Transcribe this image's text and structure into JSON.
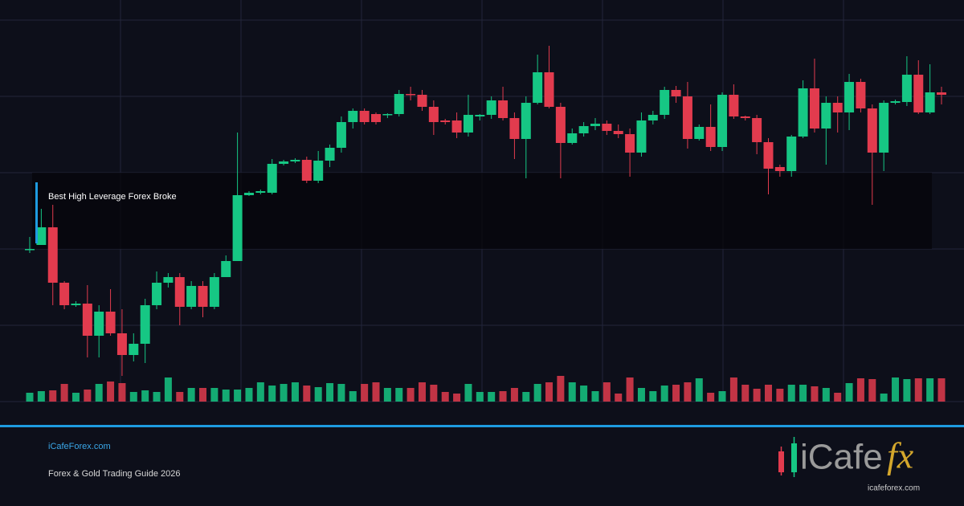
{
  "chart_data": {
    "type": "candlestick",
    "annotation": "Best High Leverage Forex Broke",
    "up_color": "#16c784",
    "down_color": "#e23b4e",
    "open": [
      190,
      195,
      217,
      148,
      120,
      122,
      82,
      112,
      85,
      58,
      72,
      120,
      148,
      155,
      118,
      144,
      118,
      155,
      175,
      257,
      260,
      260,
      296,
      299,
      301,
      275,
      300,
      316,
      348,
      362,
      358,
      357,
      358,
      383,
      382,
      367,
      350,
      350,
      335,
      355,
      357,
      375,
      353,
      327,
      372,
      410,
      367,
      322,
      334,
      343,
      346,
      337,
      333,
      310,
      350,
      357,
      388,
      380,
      327,
      342,
      317,
      382,
      355,
      353,
      323,
      292,
      287,
      330,
      390,
      340,
      372,
      360,
      398,
      365,
      310,
      372,
      373,
      407,
      360,
      385
    ],
    "close": [
      190,
      217,
      148,
      120,
      122,
      82,
      112,
      85,
      58,
      72,
      120,
      148,
      155,
      118,
      144,
      118,
      155,
      175,
      257,
      260,
      262,
      296,
      299,
      301,
      275,
      300,
      316,
      348,
      362,
      348,
      348,
      358,
      383,
      382,
      367,
      348,
      348,
      335,
      357,
      357,
      375,
      353,
      327,
      372,
      410,
      367,
      322,
      334,
      343,
      346,
      337,
      333,
      310,
      350,
      357,
      388,
      380,
      327,
      342,
      317,
      382,
      355,
      353,
      323,
      290,
      287,
      330,
      390,
      340,
      372,
      360,
      398,
      365,
      310,
      372,
      374,
      407,
      360,
      385,
      382
    ],
    "high": [
      205,
      240,
      245,
      150,
      125,
      145,
      120,
      140,
      115,
      85,
      128,
      162,
      160,
      160,
      150,
      150,
      160,
      182,
      335,
      262,
      264,
      302,
      301,
      303,
      305,
      312,
      320,
      355,
      365,
      365,
      360,
      359,
      388,
      392,
      388,
      375,
      352,
      360,
      382,
      358,
      380,
      392,
      360,
      380,
      432,
      443,
      372,
      340,
      348,
      353,
      350,
      345,
      340,
      360,
      362,
      392,
      393,
      398,
      345,
      370,
      385,
      395,
      356,
      357,
      328,
      295,
      332,
      400,
      427,
      380,
      380,
      408,
      402,
      370,
      375,
      376,
      430,
      425,
      420,
      392
    ],
    "low": [
      185,
      195,
      120,
      115,
      118,
      55,
      55,
      82,
      32,
      50,
      48,
      115,
      142,
      95,
      115,
      105,
      115,
      155,
      175,
      256,
      258,
      258,
      294,
      297,
      272,
      272,
      292,
      310,
      340,
      345,
      345,
      353,
      355,
      375,
      362,
      332,
      345,
      328,
      330,
      350,
      352,
      350,
      302,
      278,
      370,
      365,
      278,
      320,
      330,
      338,
      332,
      328,
      280,
      305,
      345,
      352,
      372,
      315,
      325,
      312,
      312,
      352,
      350,
      308,
      258,
      280,
      280,
      328,
      335,
      295,
      335,
      338,
      360,
      245,
      287,
      370,
      368,
      358,
      358,
      370
    ],
    "volumes": [
      11,
      13,
      14,
      22,
      11,
      15,
      22,
      25,
      23,
      12,
      14,
      12,
      30,
      12,
      17,
      17,
      17,
      15,
      15,
      17,
      24,
      20,
      22,
      24,
      20,
      18,
      23,
      22,
      13,
      22,
      24,
      17,
      17,
      17,
      24,
      21,
      12,
      10,
      22,
      12,
      12,
      13,
      17,
      12,
      22,
      24,
      32,
      24,
      20,
      13,
      24,
      10,
      30,
      17,
      13,
      20,
      21,
      24,
      29,
      11,
      13,
      30,
      21,
      16,
      21,
      16,
      21,
      21,
      19,
      17,
      11,
      23,
      29,
      28,
      10,
      30,
      28,
      29,
      29,
      29
    ]
  },
  "footer": {
    "site": "iCafeForex.com",
    "tagline": "Forex & Gold Trading Guide 2026"
  },
  "logo": {
    "prefix": "iCafe",
    "suffix": "fx",
    "url": "icafeforex.com"
  }
}
